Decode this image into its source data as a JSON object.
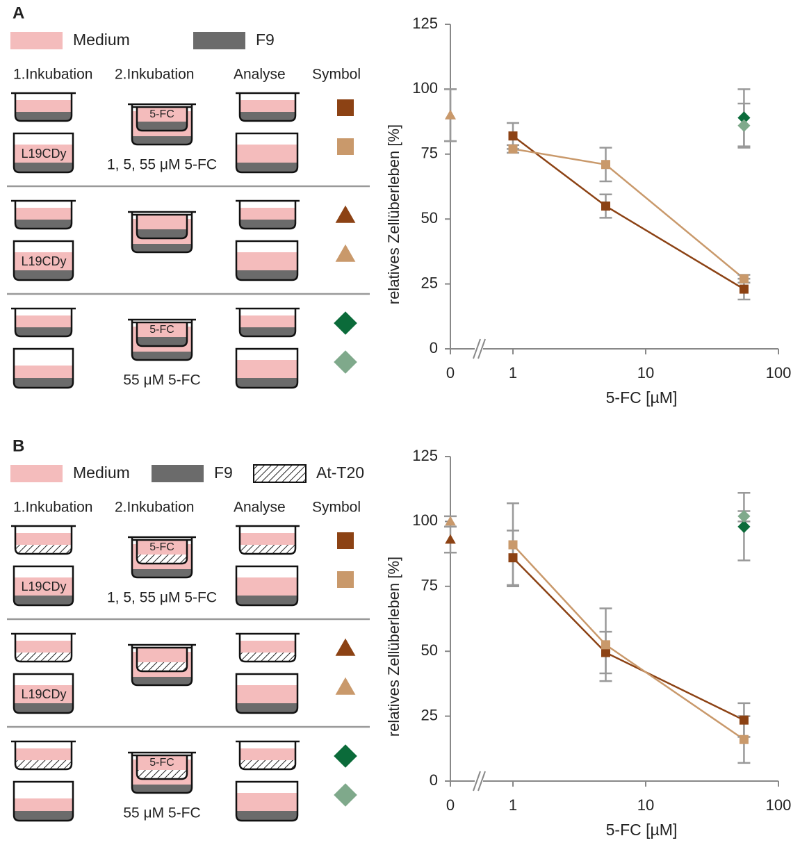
{
  "panels": [
    {
      "label": "A",
      "legend": [
        "Medium",
        "F9"
      ],
      "headers": [
        "1.Inkubation",
        "2.Inkubation",
        "Analyse",
        "Symbol"
      ],
      "rows": [
        {
          "well_text": "L19CDy",
          "insert_text": "5-FC",
          "dose": "1, 5, 55 μM 5-FC"
        },
        {
          "well_text": "L19CDy"
        },
        {
          "insert_text": "5-FC",
          "dose": "55 μM 5-FC"
        }
      ]
    },
    {
      "label": "B",
      "legend": [
        "Medium",
        "F9",
        "At-T20"
      ],
      "headers": [
        "1.Inkubation",
        "2.Inkubation",
        "Analyse",
        "Symbol"
      ],
      "rows": [
        {
          "well_text": "L19CDy",
          "insert_text": "5-FC",
          "dose": "1, 5, 55 μM 5-FC"
        },
        {
          "well_text": "L19CDy"
        },
        {
          "insert_text": "5-FC",
          "dose": "55 μM 5-FC"
        }
      ]
    }
  ],
  "chart_data": [
    {
      "type": "line",
      "xscale": "log",
      "axis_break": true,
      "xlabel": "5-FC [µM]",
      "ylabel": "relatives Zellüberleben [%]",
      "xlim": [
        0,
        100
      ],
      "ylim": [
        0,
        125
      ],
      "xticks": [
        0,
        1,
        10,
        100
      ],
      "yticks": [
        0,
        25,
        50,
        75,
        100,
        125
      ],
      "series": [
        {
          "color": "#8c4214",
          "marker": "square",
          "line": true,
          "x": [
            1,
            5,
            55
          ],
          "values": [
            82,
            55,
            23
          ],
          "errors": [
            5,
            4.5,
            4
          ]
        },
        {
          "color": "#c9996b",
          "marker": "square",
          "line": true,
          "x": [
            1,
            5,
            55
          ],
          "values": [
            77,
            71,
            27
          ],
          "errors": [
            1.5,
            6.5,
            1.5
          ]
        },
        {
          "color": "#8c4214",
          "marker": "triangle",
          "x": [
            0
          ],
          "values": [
            90
          ],
          "errors": [
            10
          ]
        },
        {
          "color": "#c9996b",
          "marker": "triangle",
          "x": [
            0
          ],
          "values": [
            90
          ],
          "errors": [
            10
          ]
        },
        {
          "color": "#0b6b3a",
          "marker": "diamond",
          "x": [
            55
          ],
          "values": [
            89
          ],
          "errors": [
            11
          ]
        },
        {
          "color": "#7fa98b",
          "marker": "diamond",
          "x": [
            55
          ],
          "values": [
            86
          ],
          "errors": [
            8.5
          ]
        }
      ]
    },
    {
      "type": "line",
      "xscale": "log",
      "axis_break": true,
      "xlabel": "5-FC [µM]",
      "ylabel": "relatives Zellüberleben [%]",
      "xlim": [
        0,
        100
      ],
      "ylim": [
        0,
        125
      ],
      "xticks": [
        0,
        1,
        10,
        100
      ],
      "yticks": [
        0,
        25,
        50,
        75,
        100,
        125
      ],
      "series": [
        {
          "color": "#8c4214",
          "marker": "square",
          "line": true,
          "x": [
            1,
            5,
            55
          ],
          "values": [
            86,
            49.5,
            23.5
          ],
          "errors": [
            10.5,
            8,
            6.5
          ]
        },
        {
          "color": "#c9996b",
          "marker": "square",
          "line": true,
          "x": [
            1,
            5,
            55
          ],
          "values": [
            91,
            52.5,
            16
          ],
          "errors": [
            16,
            14,
            9
          ]
        },
        {
          "color": "#8c4214",
          "marker": "triangle",
          "x": [
            0
          ],
          "values": [
            93
          ],
          "errors": [
            5
          ]
        },
        {
          "color": "#c9996b",
          "marker": "triangle",
          "x": [
            0
          ],
          "values": [
            100
          ],
          "errors": [
            2
          ]
        },
        {
          "color": "#0b6b3a",
          "marker": "diamond",
          "x": [
            55
          ],
          "values": [
            98
          ],
          "errors": [
            13
          ]
        },
        {
          "color": "#7fa98b",
          "marker": "diamond",
          "x": [
            55
          ],
          "values": [
            102
          ],
          "errors": [
            2
          ]
        }
      ]
    }
  ]
}
